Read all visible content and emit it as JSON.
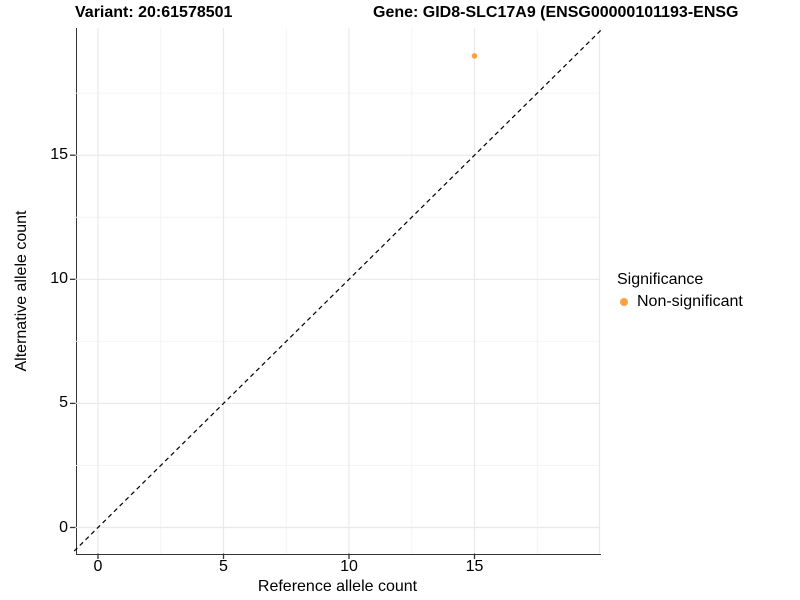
{
  "figure": {
    "title_left": "Variant: 20:61578501",
    "title_right": "Gene: GID8-SLC17A9 (ENSG00000101193-ENSG"
  },
  "chart_data": {
    "type": "scatter",
    "xlabel": "Reference allele count",
    "ylabel": "Alternative allele count",
    "x_ticks": [
      0,
      5,
      10,
      15
    ],
    "y_ticks": [
      0,
      5,
      10,
      15
    ],
    "x_grid_major": [
      0,
      5,
      10,
      15,
      20
    ],
    "y_grid_major": [
      0,
      5,
      10,
      15
    ],
    "x_grid_minor": [
      2.5,
      7.5,
      12.5,
      17.5
    ],
    "y_grid_minor": [
      2.5,
      7.5,
      12.5,
      17.5
    ],
    "xlim": [
      -0.95,
      20.05
    ],
    "ylim": [
      -1.05,
      20.1
    ],
    "grid": true,
    "points": [
      {
        "x": 15,
        "y": 19,
        "series": "Non-significant"
      }
    ],
    "reference_line": {
      "kind": "identity-diagonal",
      "equation": "y = x",
      "style": "dashed",
      "color": "#000000"
    },
    "legend": {
      "title": "Significance",
      "position": "right",
      "entries": [
        {
          "label": "Non-significant",
          "color": "#F9A242"
        }
      ]
    },
    "colors": {
      "point": "#F9A242",
      "axis_line": "#333333",
      "grid_major": "#E9E9E9",
      "grid_minor": "#F3F3F3",
      "text": "#000000"
    }
  }
}
